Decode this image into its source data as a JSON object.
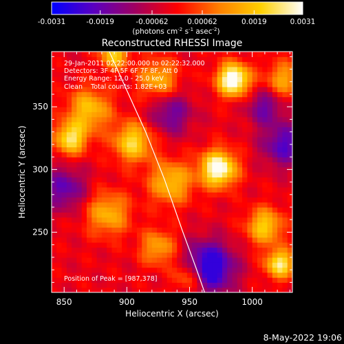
{
  "colorbar": {
    "ticks": [
      "-0.0031",
      "-0.0019",
      "-0.00062",
      "0.00062",
      "0.0019",
      "0.0031"
    ],
    "tick_values": [
      -0.0031,
      -0.0019,
      -0.00062,
      0.00062,
      0.0019,
      0.0031
    ],
    "unit_label_parts": [
      "(photons cm",
      "-2",
      " s",
      "-1",
      " asec",
      "-2",
      ")"
    ],
    "palette": [
      "#0000ff",
      "#5a00c0",
      "#a00060",
      "#ff0000",
      "#ff8000",
      "#ffd000",
      "#ffffff"
    ]
  },
  "chart_data": {
    "type": "heatmap",
    "title": "Reconstructed RHESSI Image",
    "xlabel": "Heliocentric X (arcsec)",
    "ylabel": "Heliocentric Y (arcsec)",
    "x_ticks": [
      850,
      900,
      950,
      1000
    ],
    "y_ticks": [
      250,
      300,
      350
    ],
    "xlim": [
      840,
      1032
    ],
    "ylim": [
      202,
      394
    ],
    "annotations": [
      "29-Jan-2011 02:22:00.000 to 02:22:32.000",
      "Detectors: 3F 4F 5F 6F 7F 8F, Att 0",
      "Energy Range: 12.0 - 25.0 keV",
      "Clean    Total counts: 1.82E+03"
    ],
    "peak_label": "Position of Peak = [987,378]",
    "peak": [
      987,
      378
    ],
    "limb_curve": [
      [
        886,
        394
      ],
      [
        900,
        363
      ],
      [
        915,
        330
      ],
      [
        930,
        292
      ],
      [
        944,
        252
      ],
      [
        955,
        222
      ],
      [
        962,
        202
      ]
    ],
    "intensity_sources": [
      {
        "x": 985,
        "y": 372,
        "amp": 1.0,
        "sigma": 9
      },
      {
        "x": 973,
        "y": 301,
        "amp": 0.95,
        "sigma": 10
      },
      {
        "x": 1022,
        "y": 225,
        "amp": 0.75,
        "sigma": 8
      },
      {
        "x": 1010,
        "y": 255,
        "amp": 0.6,
        "sigma": 10
      },
      {
        "x": 905,
        "y": 322,
        "amp": 0.65,
        "sigma": 11
      },
      {
        "x": 855,
        "y": 325,
        "amp": 0.7,
        "sigma": 9
      },
      {
        "x": 870,
        "y": 348,
        "amp": 0.55,
        "sigma": 12
      },
      {
        "x": 935,
        "y": 290,
        "amp": 0.55,
        "sigma": 12
      },
      {
        "x": 885,
        "y": 265,
        "amp": 0.5,
        "sigma": 12
      },
      {
        "x": 925,
        "y": 238,
        "amp": 0.45,
        "sigma": 10
      },
      {
        "x": 950,
        "y": 215,
        "amp": 0.5,
        "sigma": 9
      },
      {
        "x": 1025,
        "y": 372,
        "amp": 0.45,
        "sigma": 10
      },
      {
        "x": 925,
        "y": 372,
        "amp": 0.5,
        "sigma": 11
      },
      {
        "x": 890,
        "y": 392,
        "amp": 0.6,
        "sigma": 8
      }
    ],
    "intensity_sinks": [
      {
        "x": 965,
        "y": 222,
        "amp": -0.8,
        "sigma": 14
      },
      {
        "x": 935,
        "y": 345,
        "amp": -0.4,
        "sigma": 12
      },
      {
        "x": 1025,
        "y": 320,
        "amp": -0.5,
        "sigma": 12
      },
      {
        "x": 850,
        "y": 285,
        "amp": -0.45,
        "sigma": 12
      },
      {
        "x": 1010,
        "y": 350,
        "amp": -0.4,
        "sigma": 10
      }
    ]
  },
  "footer_timestamp": "8-May-2022 19:06"
}
